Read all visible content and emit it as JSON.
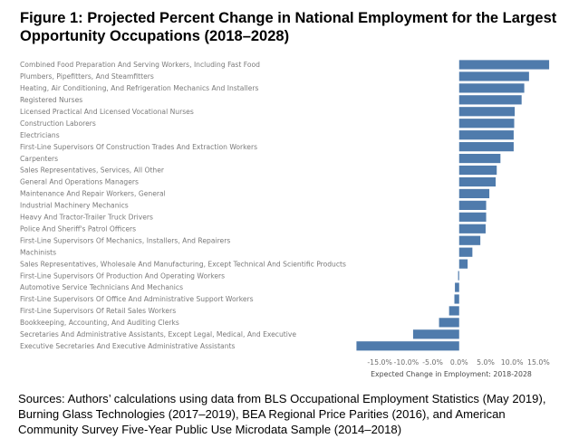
{
  "title": "Figure 1: Projected Percent Change in National Employment for the Largest Opportunity Occupations (2018–2028)",
  "source": "Sources: Authors’ calculations using data from BLS Occupational Employment Statistics (May 2019), Burning Glass Technologies (2017–2019), BEA Regional Price Parities (2016), and American Community Survey Five-Year Public Use Microdata Sample (2014–2018)",
  "chart_data": {
    "type": "bar",
    "orientation": "horizontal",
    "categories": [
      "Combined Food Preparation And Serving Workers, Including Fast Food",
      "Plumbers, Pipefitters, And Steamfitters",
      "Heating, Air Conditioning, And Refrigeration Mechanics And Installers",
      "Registered Nurses",
      "Licensed Practical And Licensed Vocational Nurses",
      "Construction Laborers",
      "Electricians",
      "First-Line Supervisors Of Construction Trades And Extraction Workers",
      "Carpenters",
      "Sales Representatives, Services, All Other",
      "General And Operations Managers",
      "Maintenance And Repair Workers, General",
      "Industrial Machinery Mechanics",
      "Heavy And Tractor-Trailer Truck Drivers",
      "Police And Sheriff's Patrol Officers",
      "First-Line Supervisors Of Mechanics, Installers, And Repairers",
      "Machinists",
      "Sales Representatives, Wholesale And Manufacturing, Except Technical And Scientific Products",
      "First-Line Supervisors Of Production And Operating Workers",
      "Automotive Service Technicians And Mechanics",
      "First-Line Supervisors Of Office And Administrative Support Workers",
      "First-Line Supervisors Of Retail Sales Workers",
      "Bookkeeping, Accounting, And Auditing Clerks",
      "Secretaries And Administrative Assistants, Except Legal, Medical, And Executive",
      "Executive Secretaries And Executive Administrative Assistants"
    ],
    "values": [
      17.0,
      13.2,
      12.3,
      11.8,
      10.5,
      10.4,
      10.3,
      10.3,
      7.8,
      7.1,
      6.9,
      5.7,
      5.1,
      5.1,
      5.0,
      4.0,
      2.5,
      1.6,
      -0.2,
      -0.8,
      -0.9,
      -1.9,
      -3.8,
      -8.7,
      -19.4
    ],
    "xlabel": "Expected Change in Employment: 2018-2028",
    "ylabel": "",
    "xlim": [
      -20.5,
      17.5
    ],
    "ticks": [
      -15,
      -10,
      -5,
      0,
      5,
      10,
      15
    ],
    "tick_labels": [
      "-15.0%",
      "-10.0%",
      "-5.0%",
      "0.0%",
      "5.0%",
      "10.0%",
      "15.0%"
    ],
    "bar_color": "#4f7bac",
    "grid": false,
    "legend": "none"
  }
}
